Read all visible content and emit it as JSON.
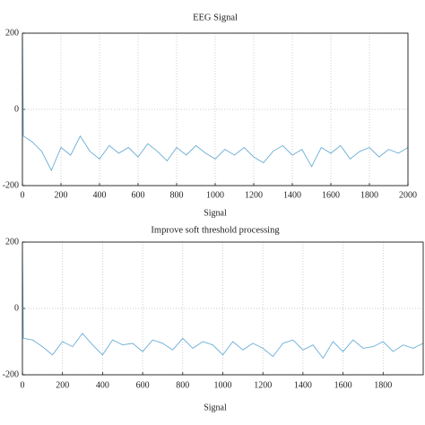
{
  "chart_data": [
    {
      "type": "line",
      "title": "EEG Signal",
      "xlabel": "Signal",
      "x": [
        0,
        5,
        50,
        100,
        150,
        200,
        250,
        300,
        350,
        400,
        450,
        500,
        550,
        600,
        650,
        700,
        750,
        800,
        850,
        900,
        950,
        1000,
        1050,
        1100,
        1150,
        1200,
        1250,
        1300,
        1350,
        1400,
        1450,
        1500,
        1550,
        1600,
        1650,
        1700,
        1750,
        1800,
        1850,
        1900,
        1950,
        2000
      ],
      "values": [
        190,
        -70,
        -85,
        -110,
        -160,
        -100,
        -120,
        -70,
        -110,
        -130,
        -95,
        -115,
        -100,
        -125,
        -90,
        -110,
        -135,
        -100,
        -120,
        -95,
        -115,
        -130,
        -105,
        -120,
        -100,
        -125,
        -140,
        -110,
        -95,
        -120,
        -105,
        -150,
        -100,
        -115,
        -95,
        -130,
        -110,
        -100,
        -125,
        -105,
        -115,
        -100
      ],
      "color": "#6aaed6",
      "xlim": [
        0,
        2000
      ],
      "ylim": [
        -200,
        200
      ],
      "xticks": [
        0,
        200,
        400,
        600,
        800,
        1000,
        1200,
        1400,
        1600,
        1800,
        2000
      ],
      "yticks": [
        -200,
        0,
        200
      ],
      "grid": true
    },
    {
      "type": "line",
      "title": "Improve soft threshold processing",
      "xlabel": "Signal",
      "x": [
        0,
        5,
        50,
        100,
        150,
        200,
        250,
        300,
        350,
        400,
        450,
        500,
        550,
        600,
        650,
        700,
        750,
        800,
        850,
        900,
        950,
        1000,
        1050,
        1100,
        1150,
        1200,
        1250,
        1300,
        1350,
        1400,
        1450,
        1500,
        1550,
        1600,
        1650,
        1700,
        1750,
        1800,
        1850,
        1900,
        1950,
        2000
      ],
      "values": [
        170,
        -90,
        -95,
        -115,
        -140,
        -100,
        -115,
        -75,
        -110,
        -140,
        -95,
        -110,
        -105,
        -130,
        -95,
        -105,
        -125,
        -90,
        -120,
        -100,
        -110,
        -140,
        -100,
        -125,
        -105,
        -120,
        -145,
        -105,
        -95,
        -125,
        -110,
        -150,
        -100,
        -130,
        -95,
        -120,
        -115,
        -100,
        -130,
        -110,
        -120,
        -105
      ],
      "color": "#6aaed6",
      "xlim": [
        0,
        2000
      ],
      "ylim": [
        -200,
        200
      ],
      "xticks": [
        0,
        200,
        400,
        600,
        800,
        1000,
        1200,
        1400,
        1600,
        1800
      ],
      "yticks": [
        -200,
        0,
        200
      ],
      "grid": true
    }
  ]
}
